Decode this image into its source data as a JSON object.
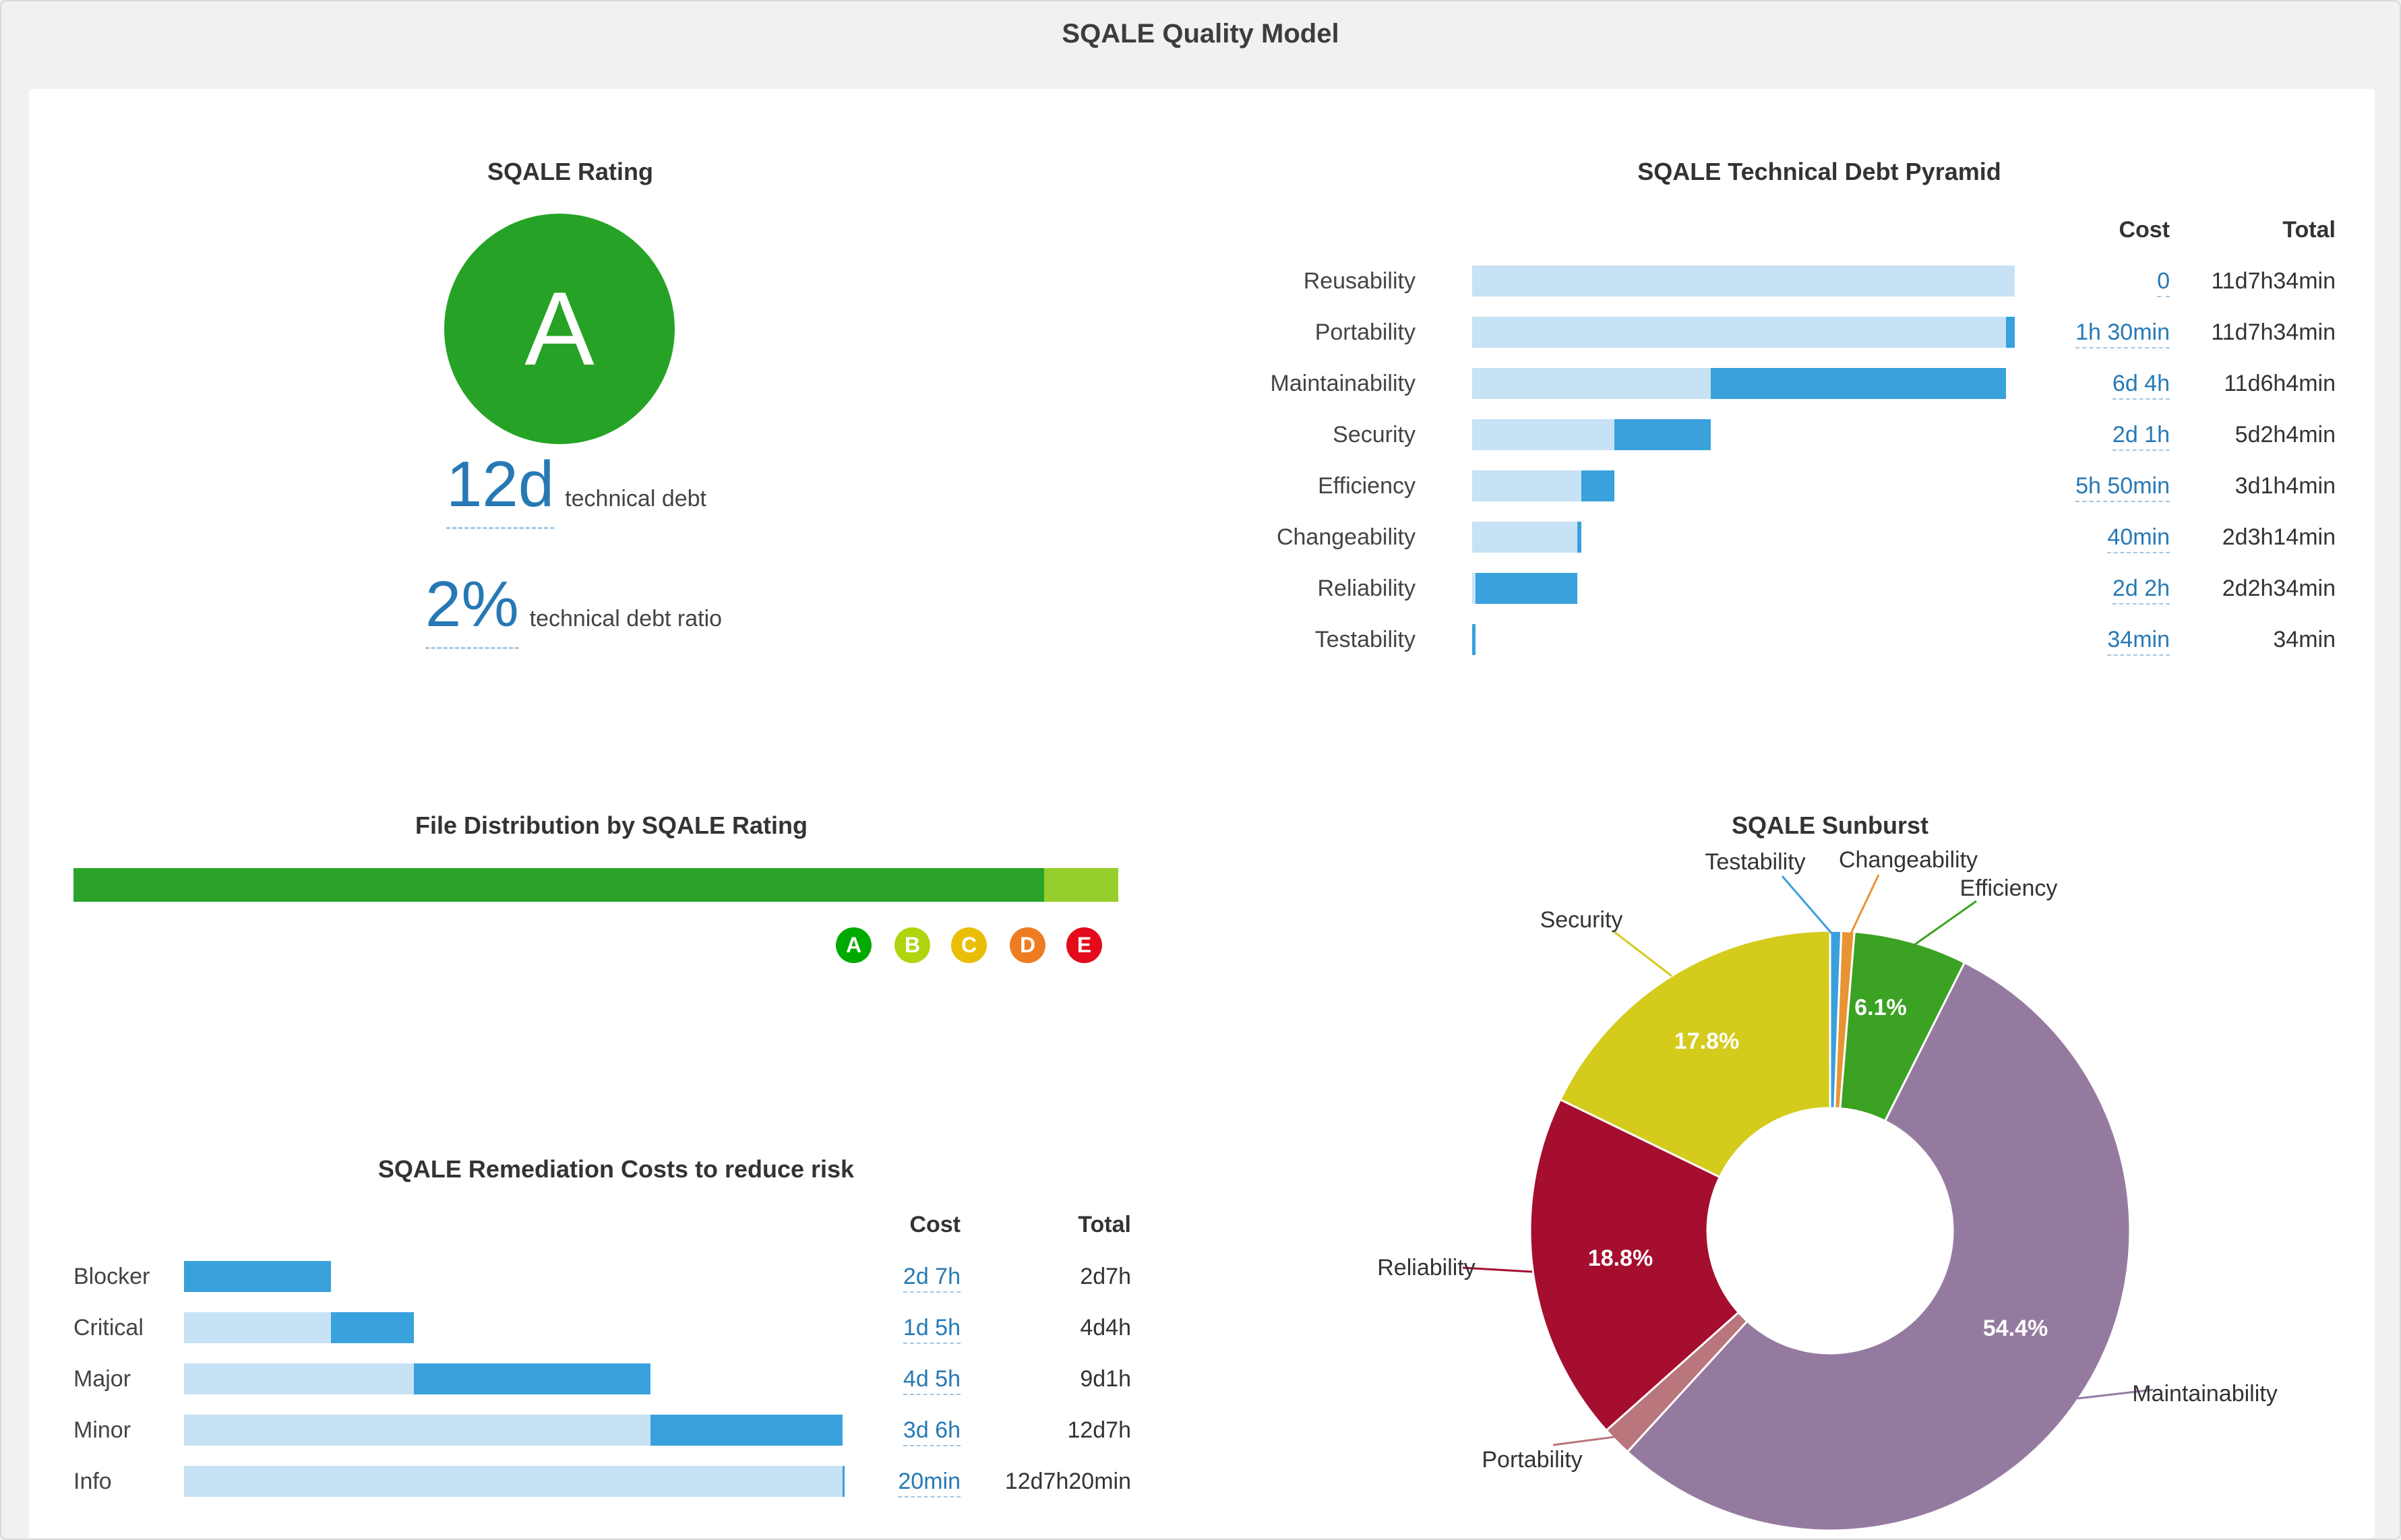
{
  "page_title": "SQALE Quality Model",
  "link_color": "#2779b5",
  "rating": {
    "title": "SQALE Rating",
    "grade": "A",
    "grade_color": "#26a326",
    "debt_value": "12d",
    "debt_label": "technical debt",
    "ratio_value": "2%",
    "ratio_label": "technical debt ratio"
  },
  "chart_data": [
    {
      "id": "debt_pyramid",
      "type": "bar",
      "orientation": "horizontal",
      "title": "SQALE Technical Debt Pyramid",
      "cost_header": "Cost",
      "total_header": "Total",
      "colors": {
        "total": "#c7e2f4",
        "cost": "#39a1dc"
      },
      "rows": [
        {
          "label": "Reusability",
          "cost": "0",
          "total": "11d7h34min",
          "cost_hours": 0,
          "total_hours": 95.5667
        },
        {
          "label": "Portability",
          "cost": "1h 30min",
          "total": "11d7h34min",
          "cost_hours": 1.5,
          "total_hours": 95.5667
        },
        {
          "label": "Maintainability",
          "cost": "6d 4h",
          "total": "11d6h4min",
          "cost_hours": 52,
          "total_hours": 94.0667
        },
        {
          "label": "Security",
          "cost": "2d 1h",
          "total": "5d2h4min",
          "cost_hours": 17,
          "total_hours": 42.0667
        },
        {
          "label": "Efficiency",
          "cost": "5h 50min",
          "total": "3d1h4min",
          "cost_hours": 5.8333,
          "total_hours": 25.0667
        },
        {
          "label": "Changeability",
          "cost": "40min",
          "total": "2d3h14min",
          "cost_hours": 0.6667,
          "total_hours": 19.2333
        },
        {
          "label": "Reliability",
          "cost": "2d 2h",
          "total": "2d2h34min",
          "cost_hours": 18,
          "total_hours": 18.5667
        },
        {
          "label": "Testability",
          "cost": "34min",
          "total": "34min",
          "cost_hours": 0.5667,
          "total_hours": 0.5667
        }
      ]
    },
    {
      "id": "file_distribution",
      "type": "bar",
      "orientation": "horizontal-stacked",
      "title": "File Distribution by SQALE Rating",
      "segments": [
        {
          "rating": "A",
          "color": "#2ba32b",
          "fraction": 0.929
        },
        {
          "rating": "B",
          "color": "#96ce2c",
          "fraction": 0.071
        }
      ],
      "ratings": [
        {
          "letter": "A",
          "color": "#00aa00"
        },
        {
          "letter": "B",
          "color": "#b0d40e"
        },
        {
          "letter": "C",
          "color": "#eabe06"
        },
        {
          "letter": "D",
          "color": "#ed7d20"
        },
        {
          "letter": "E",
          "color": "#e30b1c"
        }
      ]
    },
    {
      "id": "remediation_costs",
      "type": "bar",
      "orientation": "horizontal",
      "title": "SQALE Remediation Costs to reduce risk",
      "cost_header": "Cost",
      "total_header": "Total",
      "colors": {
        "total": "#c7e2f4",
        "cost": "#39a1dc"
      },
      "rows": [
        {
          "label": "Blocker",
          "cost": "2d 7h",
          "total": "2d7h",
          "cost_hours": 23,
          "total_hours": 23
        },
        {
          "label": "Critical",
          "cost": "1d 5h",
          "total": "4d4h",
          "cost_hours": 13,
          "total_hours": 36
        },
        {
          "label": "Major",
          "cost": "4d 5h",
          "total": "9d1h",
          "cost_hours": 37,
          "total_hours": 73
        },
        {
          "label": "Minor",
          "cost": "3d 6h",
          "total": "12d7h",
          "cost_hours": 30,
          "total_hours": 103
        },
        {
          "label": "Info",
          "cost": "20min",
          "total": "12d7h20min",
          "cost_hours": 0.3333,
          "total_hours": 103.3333
        }
      ]
    },
    {
      "id": "sunburst",
      "type": "pie",
      "title": "SQALE Sunburst",
      "donut": true,
      "slices": [
        {
          "name": "Testability",
          "pct": 0.6,
          "pct_label": "",
          "color": "#3aa0dc"
        },
        {
          "name": "Changeability",
          "pct": 0.7,
          "pct_label": "",
          "color": "#e89434"
        },
        {
          "name": "Efficiency",
          "pct": 6.1,
          "pct_label": "6.1%",
          "color": "#3ba224"
        },
        {
          "name": "Maintainability",
          "pct": 54.4,
          "pct_label": "54.4%",
          "color": "#957aa0"
        },
        {
          "name": "Portability",
          "pct": 1.6,
          "pct_label": "",
          "color": "#ba767d"
        },
        {
          "name": "Reliability",
          "pct": 18.8,
          "pct_label": "18.8%",
          "color": "#a50e2e"
        },
        {
          "name": "Security",
          "pct": 17.8,
          "pct_label": "17.8%",
          "color": "#d4cb1c"
        }
      ]
    }
  ]
}
